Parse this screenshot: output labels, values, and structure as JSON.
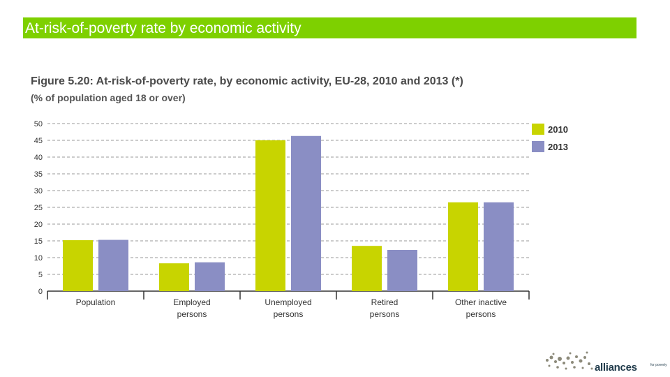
{
  "slide": {
    "title": "At-risk-of-poverty rate by economic activity",
    "title_bg": "#7ed000"
  },
  "logo": {
    "name": "alliances",
    "tagline": "for poverty"
  },
  "chart_data": {
    "type": "bar",
    "title": "Figure 5.20: At-risk-of-poverty rate, by economic activity, EU-28, 2010 and 2013 (*)",
    "subtitle": "(% of population aged 18 or over)",
    "categories": [
      "Population",
      "Employed persons",
      "Unemployed persons",
      "Retired persons",
      "Other inactive persons"
    ],
    "category_lines": [
      [
        "Population"
      ],
      [
        "Employed",
        "persons"
      ],
      [
        "Unemployed",
        "persons"
      ],
      [
        "Retired",
        "persons"
      ],
      [
        "Other inactive",
        "persons"
      ]
    ],
    "series": [
      {
        "name": "2010",
        "color": "#c8d400",
        "values": [
          15.2,
          8.3,
          45.0,
          13.5,
          26.5
        ]
      },
      {
        "name": "2013",
        "color": "#8a8ec4",
        "values": [
          15.3,
          8.6,
          46.3,
          12.3,
          26.5
        ]
      }
    ],
    "ylim": [
      0,
      50
    ],
    "yticks": [
      0,
      5,
      10,
      15,
      20,
      25,
      30,
      35,
      40,
      45,
      50
    ],
    "grid": true,
    "grid_color": "#9a9a9a",
    "legend": "top-right"
  }
}
